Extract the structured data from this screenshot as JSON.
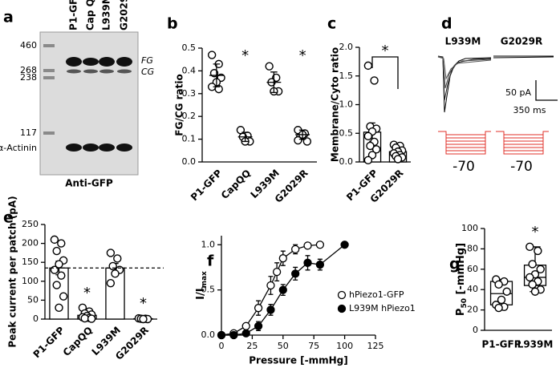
{
  "chart_data": [
    {
      "type": "blot",
      "panel_label": "a",
      "ladder": [
        460,
        268,
        238,
        117
      ],
      "loading_label": "α-Actinin",
      "lanes": [
        "P1-GFP",
        "Cap QQ",
        "L939M",
        "G2029R"
      ],
      "band_labels": [
        "FG",
        "CG"
      ],
      "footer": "Anti-GFP"
    },
    {
      "type": "dot",
      "panel_label": "b",
      "y_label": "FG/CG ratio",
      "categories": [
        "P1-GFP",
        "CapQQ",
        "L939M",
        "G2029R"
      ],
      "points": [
        [
          0.47,
          0.43,
          0.39,
          0.37,
          0.35,
          0.33,
          0.32
        ],
        [
          0.14,
          0.115,
          0.11,
          0.09,
          0.09
        ],
        [
          0.42,
          0.37,
          0.35,
          0.31,
          0.31
        ],
        [
          0.14,
          0.125,
          0.11,
          0.09,
          0.12,
          0.095
        ]
      ],
      "means": [
        0.38,
        0.11,
        0.35,
        0.12
      ],
      "sd": [
        0.05,
        0.02,
        0.045,
        0.02
      ],
      "asterisks": [
        null,
        "*",
        null,
        "*"
      ],
      "ylim": [
        0,
        0.5
      ],
      "yticks": [
        {
          "value": 0,
          "label": "0.0"
        },
        0.1,
        0.2,
        0.3,
        0.4,
        0.5
      ]
    },
    {
      "type": "bar",
      "panel_label": "c",
      "y_label": "Membrane/Cyto ratio",
      "categories": [
        "P1-GFP",
        "G2029R"
      ],
      "points": [
        [
          1.68,
          1.42,
          0.62,
          0.58,
          0.53,
          0.45,
          0.35,
          0.28,
          0.22,
          0.12,
          0.03
        ],
        [
          0.3,
          0.28,
          0.25,
          0.2,
          0.18,
          0.15,
          0.12,
          0.1,
          0.08,
          0.05
        ]
      ],
      "means": [
        0.52,
        0.18
      ],
      "sem": [
        0.16,
        0.03
      ],
      "bracket_text": "*",
      "ylim": [
        0,
        2
      ],
      "yticks": [
        {
          "value": 0,
          "label": "0.0"
        },
        0.5,
        {
          "value": 1,
          "label": "1.0"
        },
        1.5,
        {
          "value": 2,
          "label": "2.0"
        }
      ]
    },
    {
      "type": "traces",
      "panel_label": "d",
      "trace_titles": [
        "L939M",
        "G2029R"
      ],
      "scale_labels": [
        "50 pA",
        "350 ms"
      ],
      "voltage_labels": [
        "-70",
        "-70"
      ]
    },
    {
      "type": "bar",
      "panel_label": "e",
      "y_label": "Peak current per patch (pA)",
      "categories": [
        "P1-GFP",
        "CapQQ",
        "L939M",
        "G2029R"
      ],
      "points": [
        [
          210,
          200,
          180,
          155,
          145,
          130,
          115,
          90,
          60,
          30
        ],
        [
          30,
          20,
          15,
          12,
          8,
          5,
          3,
          2,
          1
        ],
        [
          175,
          160,
          140,
          130,
          120,
          95
        ],
        [
          2,
          1,
          1,
          0,
          0
        ]
      ],
      "means": [
        135,
        10,
        135,
        1
      ],
      "sem": [
        18,
        3,
        12,
        0.5
      ],
      "reference_line": 135,
      "asterisks": [
        null,
        "*",
        null,
        "*"
      ],
      "ylim": [
        0,
        250
      ],
      "yticks": [
        0,
        50,
        100,
        150,
        200,
        250
      ]
    },
    {
      "type": "line",
      "panel_label": "f",
      "y_label": [
        "I/I",
        "max"
      ],
      "x_label": "Pressure [-mmHg]",
      "series": [
        {
          "name": "hPiezo1-GFP",
          "marker_fill": "#ffffff",
          "x": [
            0,
            10,
            20,
            30,
            40,
            45,
            50,
            60,
            70,
            80
          ],
          "values": [
            0,
            0.02,
            0.1,
            0.3,
            0.55,
            0.7,
            0.85,
            0.95,
            0.99,
            1.0
          ],
          "errors": [
            0,
            0.01,
            0.03,
            0.08,
            0.1,
            0.1,
            0.08,
            0.05,
            0.03,
            0
          ]
        },
        {
          "name": "L939M hPiezo1",
          "marker_fill": "#000000",
          "x": [
            0,
            10,
            20,
            30,
            40,
            50,
            60,
            70,
            80,
            100
          ],
          "values": [
            0,
            0,
            0.02,
            0.1,
            0.28,
            0.5,
            0.68,
            0.8,
            0.78,
            1.0
          ],
          "errors": [
            0,
            0,
            0.02,
            0.05,
            0.06,
            0.06,
            0.07,
            0.08,
            0.06,
            0
          ]
        }
      ],
      "xlim": [
        0,
        125
      ],
      "xticks": [
        0,
        25,
        50,
        75,
        100,
        125
      ],
      "ylim": [
        0,
        1.1
      ],
      "yticks": [
        {
          "value": 0,
          "label": "0.0"
        },
        0.5,
        {
          "value": 1,
          "label": "1.0"
        }
      ]
    },
    {
      "type": "box",
      "panel_label": "g",
      "y_label": [
        "P",
        "50",
        " [-mmHg]"
      ],
      "categories": [
        "P1-GFP",
        "L939M"
      ],
      "points": [
        [
          50,
          48,
          45,
          38,
          30,
          25,
          23,
          22
        ],
        [
          82,
          78,
          65,
          60,
          55,
          52,
          48,
          45,
          40,
          38
        ]
      ],
      "min": [
        22,
        38
      ],
      "q1": [
        25,
        44
      ],
      "median": [
        36,
        52
      ],
      "q3": [
        48,
        64
      ],
      "max": [
        50,
        82
      ],
      "asterisks": [
        null,
        "*"
      ],
      "ylim": [
        0,
        100
      ],
      "yticks": [
        0,
        20,
        40,
        60,
        80,
        100
      ]
    }
  ]
}
